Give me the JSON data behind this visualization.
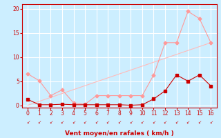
{
  "title": "",
  "xlabel": "Vent moyen/en rafales ( km/h )",
  "bg_color": "#cceeff",
  "grid_color": "#ffffff",
  "xlim": [
    -0.5,
    16.5
  ],
  "ylim": [
    -0.5,
    21
  ],
  "yticks": [
    0,
    5,
    10,
    15,
    20
  ],
  "xticks": [
    0,
    1,
    2,
    3,
    4,
    5,
    6,
    7,
    8,
    9,
    10,
    11,
    12,
    13,
    14,
    15,
    16
  ],
  "line1_x": [
    0,
    1,
    2,
    3,
    4,
    5,
    6,
    7,
    8,
    9,
    10,
    11,
    12,
    13,
    14,
    15,
    16
  ],
  "line1_y": [
    1.2,
    0.1,
    0.1,
    0.2,
    0.1,
    0.1,
    0.1,
    0.1,
    0.1,
    0.0,
    0.1,
    1.3,
    3.0,
    6.3,
    5.0,
    6.3,
    4.0
  ],
  "line1_color": "#cc0000",
  "line2_x": [
    0,
    1,
    2,
    3,
    4,
    5,
    6,
    7,
    8,
    9,
    10,
    11,
    12,
    13,
    14,
    15,
    16
  ],
  "line2_y": [
    6.5,
    5.1,
    2.0,
    3.2,
    0.5,
    0.2,
    2.0,
    2.0,
    2.0,
    2.0,
    2.0,
    6.3,
    13.0,
    13.0,
    19.5,
    18.0,
    13.0
  ],
  "line2_color": "#ff9999",
  "line3_x": [
    0,
    16
  ],
  "line3_y": [
    0.0,
    13.0
  ],
  "line3_color": "#ffbbbb"
}
